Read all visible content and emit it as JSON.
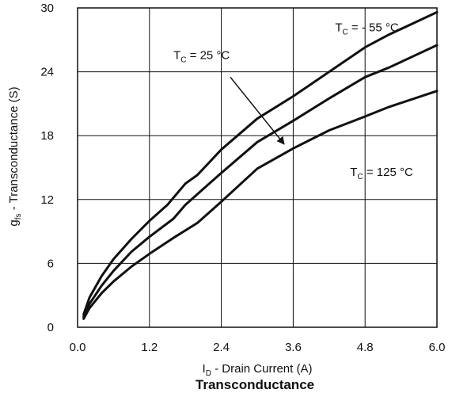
{
  "chart_data": {
    "type": "line",
    "title": "Transconductance",
    "xlabel": {
      "main": "I",
      "sub": "D",
      "rest": " - Drain Current (A)"
    },
    "ylabel": {
      "main": "g",
      "sub": "fs",
      "rest": " - Transconductance (S)"
    },
    "xlim": [
      0,
      6
    ],
    "ylim": [
      0,
      30
    ],
    "xticks": [
      "0.0",
      "1.2",
      "2.4",
      "3.6",
      "4.8",
      "6.0"
    ],
    "yticks": [
      "0",
      "6",
      "12",
      "18",
      "24",
      "30"
    ],
    "grid": true,
    "series": [
      {
        "name": {
          "main": "T",
          "sub": "C",
          "rest": " = - 55 °C"
        },
        "x": [
          0.1,
          0.2,
          0.4,
          0.6,
          0.9,
          1.2,
          1.5,
          1.8,
          2.0,
          2.4,
          3.0,
          3.6,
          4.2,
          4.8,
          5.2,
          6.0
        ],
        "y": [
          1.2,
          2.8,
          4.8,
          6.4,
          8.3,
          10.0,
          11.5,
          13.5,
          14.3,
          16.7,
          19.6,
          21.7,
          24.0,
          26.3,
          27.5,
          29.6
        ]
      },
      {
        "name": {
          "main": "T",
          "sub": "C",
          "rest": " = 25 °C"
        },
        "x": [
          0.1,
          0.2,
          0.4,
          0.6,
          0.9,
          1.2,
          1.6,
          1.8,
          2.0,
          2.4,
          3.0,
          3.6,
          4.2,
          4.8,
          5.2,
          6.0
        ],
        "y": [
          1.0,
          2.2,
          3.9,
          5.3,
          7.1,
          8.5,
          10.2,
          11.5,
          12.5,
          14.5,
          17.4,
          19.4,
          21.5,
          23.5,
          24.4,
          26.5
        ]
      },
      {
        "name": {
          "main": "T",
          "sub": "C",
          "rest": " = 125 °C"
        },
        "x": [
          0.1,
          0.2,
          0.4,
          0.6,
          0.9,
          1.2,
          1.6,
          2.0,
          2.4,
          3.0,
          3.6,
          4.2,
          4.8,
          5.2,
          6.0
        ],
        "y": [
          0.8,
          1.8,
          3.2,
          4.3,
          5.7,
          6.9,
          8.4,
          9.8,
          11.8,
          14.9,
          16.8,
          18.5,
          19.8,
          20.7,
          22.2
        ]
      }
    ],
    "annotations": [
      {
        "series": 0,
        "anchor": [
          4.3,
          27.8
        ],
        "arrow": false
      },
      {
        "series": 1,
        "anchor": [
          1.6,
          25.2
        ],
        "arrow": true,
        "arrow_from": [
          2.55,
          23.5
        ],
        "arrow_to": [
          3.45,
          17.2
        ]
      },
      {
        "series": 2,
        "anchor": [
          4.55,
          14.2
        ],
        "arrow": false
      }
    ]
  }
}
